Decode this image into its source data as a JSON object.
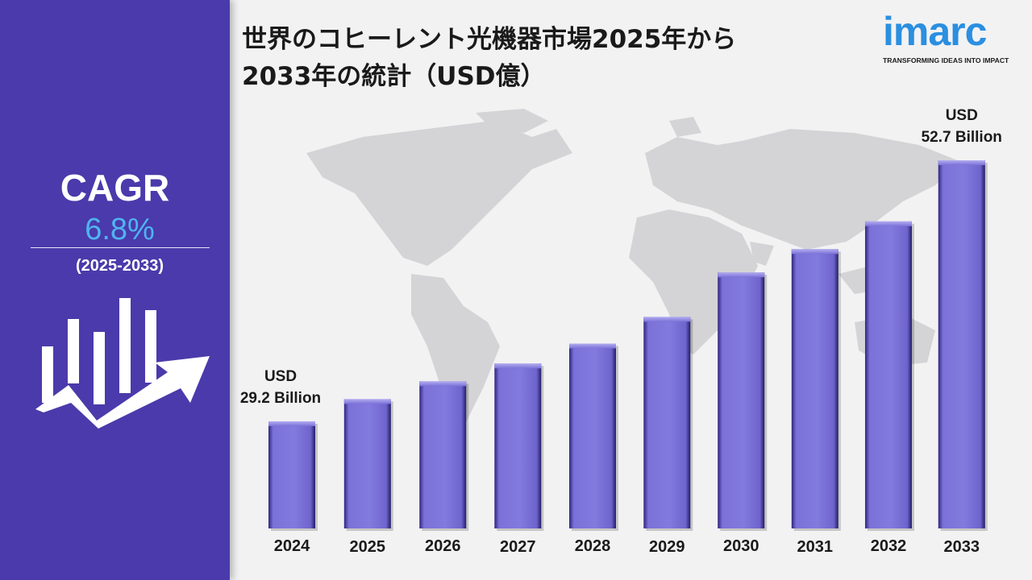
{
  "title_line1": "世界のコヒーレント光機器市場2025年から",
  "title_line2": "2033年の統計（USD億）",
  "logo": {
    "wordmark": "imarc",
    "tagline": "TRANSFORMING IDEAS INTO IMPACT",
    "color": "#2b8fe0"
  },
  "sidebar": {
    "cagr_label": "CAGR",
    "cagr_value": "6.8%",
    "period": "(2025-2033)",
    "icon": "growth-chart-icon"
  },
  "colors": {
    "sidebar": "#4a3aab",
    "bar": "#7b71d8",
    "cagr_value": "#4fb4f0"
  },
  "chart_data": {
    "type": "bar",
    "title": "世界のコヒーレント光機器市場2025年から2033年の統計（USD億）",
    "categories": [
      "2024",
      "2025",
      "2026",
      "2027",
      "2028",
      "2029",
      "2030",
      "2031",
      "2032",
      "2033"
    ],
    "values": [
      29.2,
      31.2,
      32.8,
      34.4,
      36.2,
      38.6,
      42.6,
      44.7,
      47.2,
      52.7
    ],
    "ylim": [
      0,
      60
    ],
    "grid": false,
    "annotations": [
      {
        "category": "2024",
        "line1": "USD",
        "line2": "29.2 Billion"
      },
      {
        "category": "2033",
        "line1": "USD",
        "line2": "52.7 Billion"
      }
    ]
  }
}
